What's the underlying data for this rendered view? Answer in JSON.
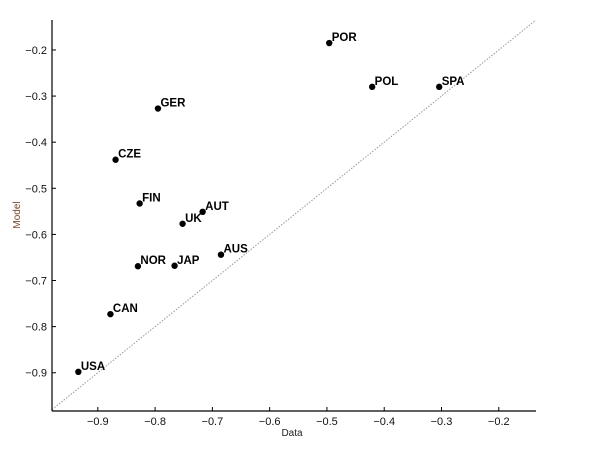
{
  "chart_data": {
    "type": "scatter",
    "title": "",
    "xlabel": "Data",
    "ylabel": "Model",
    "xlim": [
      -0.98,
      -0.135
    ],
    "ylim": [
      -0.983,
      -0.135
    ],
    "xticks": [
      -0.9,
      -0.8,
      -0.7,
      -0.6,
      -0.5,
      -0.4,
      -0.3,
      -0.2
    ],
    "yticks": [
      -0.2,
      -0.3,
      -0.4,
      -0.5,
      -0.6,
      -0.7,
      -0.8,
      -0.9
    ],
    "xtick_labels": [
      "−0.9",
      "−0.8",
      "−0.7",
      "−0.6",
      "−0.5",
      "−0.4",
      "−0.3",
      "−0.2"
    ],
    "ytick_labels": [
      "−0.2",
      "−0.3",
      "−0.4",
      "−0.5",
      "−0.6",
      "−0.7",
      "−0.8",
      "−0.9"
    ],
    "grid": false,
    "reference_line": "y = x (dotted gray)",
    "points": [
      {
        "label": "POR",
        "x": -0.496,
        "y": -0.185
      },
      {
        "label": "POL",
        "x": -0.421,
        "y": -0.28
      },
      {
        "label": "SPA",
        "x": -0.304,
        "y": -0.28
      },
      {
        "label": "GER",
        "x": -0.795,
        "y": -0.327
      },
      {
        "label": "CZE",
        "x": -0.869,
        "y": -0.438
      },
      {
        "label": "FIN",
        "x": -0.827,
        "y": -0.533
      },
      {
        "label": "AUT",
        "x": -0.717,
        "y": -0.551
      },
      {
        "label": "UK",
        "x": -0.752,
        "y": -0.577
      },
      {
        "label": "AUS",
        "x": -0.685,
        "y": -0.644
      },
      {
        "label": "NOR",
        "x": -0.83,
        "y": -0.669
      },
      {
        "label": "JAP",
        "x": -0.766,
        "y": -0.668
      },
      {
        "label": "CAN",
        "x": -0.878,
        "y": -0.773
      },
      {
        "label": "USA",
        "x": -0.934,
        "y": -0.898
      }
    ],
    "colors": {
      "points": "#000000",
      "reference_line": "#999999",
      "ylabel": "#7a4a2a"
    }
  }
}
